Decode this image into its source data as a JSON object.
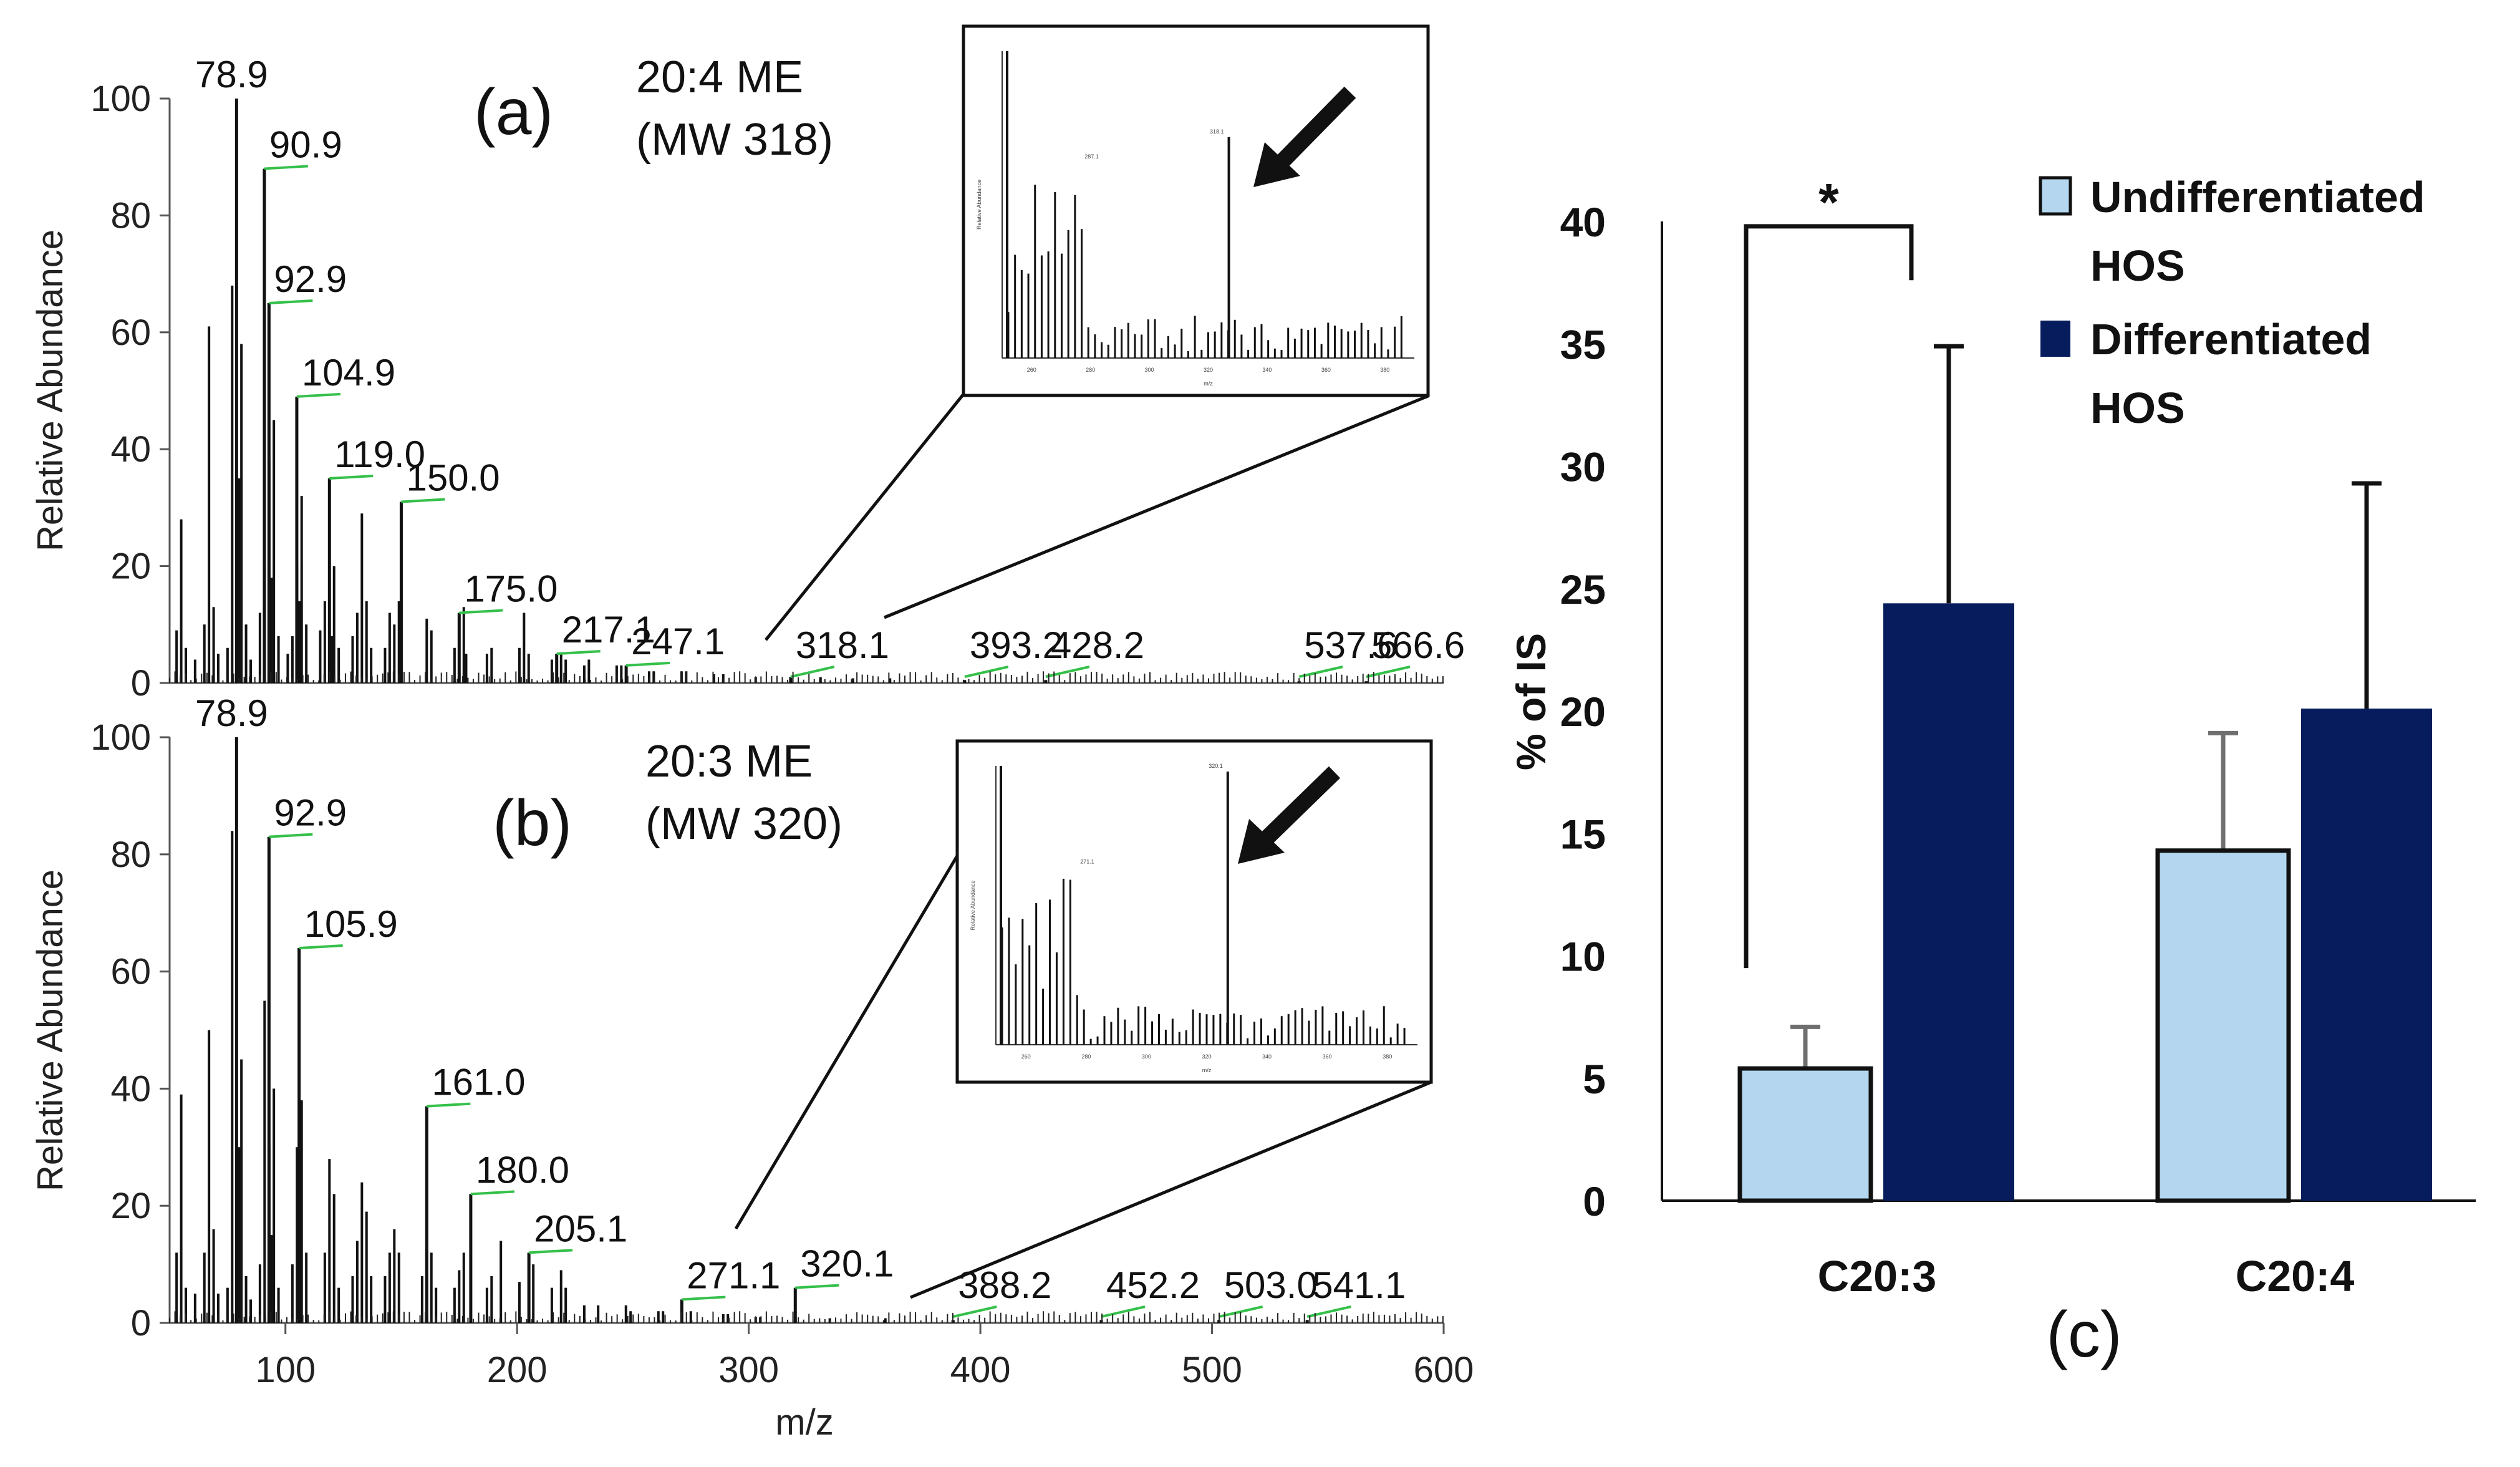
{
  "chart_data": [
    {
      "panel": "(a)",
      "type": "line",
      "subtype": "mass-spectrum",
      "title": "20:4 ME",
      "subtitle": "(MW 318)",
      "xlabel": "",
      "ylabel": "Relative Abundance",
      "xlim": [
        50,
        600
      ],
      "ylim": [
        0,
        100
      ],
      "yticks": [
        0,
        20,
        40,
        60,
        80,
        100
      ],
      "xticks": [],
      "peaks": [
        {
          "mz": 78.9,
          "rel": 100,
          "label": "78.9"
        },
        {
          "mz": 90.9,
          "rel": 88,
          "label": "90.9"
        },
        {
          "mz": 92.9,
          "rel": 65,
          "label": "92.9"
        },
        {
          "mz": 104.9,
          "rel": 49,
          "label": "104.9"
        },
        {
          "mz": 119.0,
          "rel": 35,
          "label": "119.0"
        },
        {
          "mz": 150.0,
          "rel": 31,
          "label": "150.0"
        },
        {
          "mz": 175.0,
          "rel": 12,
          "label": "175.0"
        },
        {
          "mz": 217.1,
          "rel": 5,
          "label": "217.1"
        },
        {
          "mz": 247.1,
          "rel": 3,
          "label": "247.1"
        },
        {
          "mz": 318.1,
          "rel": 1,
          "label": "318.1"
        },
        {
          "mz": 393.2,
          "rel": 0.5,
          "label": "393.2"
        },
        {
          "mz": 428.2,
          "rel": 0.5,
          "label": "428.2"
        },
        {
          "mz": 537.6,
          "rel": 0.3,
          "label": "537.6"
        },
        {
          "mz": 566.6,
          "rel": 0.3,
          "label": "566.6"
        }
      ],
      "minor_peaks": [
        [
          53,
          9
        ],
        [
          55,
          28
        ],
        [
          57,
          6
        ],
        [
          61,
          4
        ],
        [
          65,
          10
        ],
        [
          67,
          61
        ],
        [
          69,
          13
        ],
        [
          71,
          5
        ],
        [
          75,
          6
        ],
        [
          77,
          68
        ],
        [
          79,
          28
        ],
        [
          80,
          35
        ],
        [
          81,
          58
        ],
        [
          83,
          10
        ],
        [
          85,
          4
        ],
        [
          89,
          12
        ],
        [
          91,
          20
        ],
        [
          93,
          38
        ],
        [
          94,
          18
        ],
        [
          95,
          45
        ],
        [
          97,
          8
        ],
        [
          101,
          5
        ],
        [
          103,
          8
        ],
        [
          105,
          20
        ],
        [
          106,
          14
        ],
        [
          107,
          32
        ],
        [
          109,
          10
        ],
        [
          115,
          9
        ],
        [
          117,
          14
        ],
        [
          119,
          12
        ],
        [
          120,
          8
        ],
        [
          121,
          20
        ],
        [
          123,
          6
        ],
        [
          129,
          8
        ],
        [
          131,
          12
        ],
        [
          133,
          29
        ],
        [
          135,
          14
        ],
        [
          137,
          6
        ],
        [
          143,
          6
        ],
        [
          145,
          12
        ],
        [
          147,
          10
        ],
        [
          149,
          14
        ],
        [
          161,
          11
        ],
        [
          163,
          9
        ],
        [
          173,
          6
        ],
        [
          177,
          13
        ],
        [
          178,
          5
        ],
        [
          187,
          5
        ],
        [
          189,
          6
        ],
        [
          201,
          6
        ],
        [
          203,
          12
        ],
        [
          205,
          5
        ],
        [
          215,
          4
        ],
        [
          219,
          5
        ],
        [
          221,
          4
        ],
        [
          229,
          3
        ],
        [
          231,
          4
        ],
        [
          243,
          3
        ],
        [
          245,
          3
        ],
        [
          257,
          2
        ],
        [
          259,
          2
        ],
        [
          271,
          2
        ],
        [
          273,
          2
        ],
        [
          285,
          1.5
        ],
        [
          289,
          1.5
        ],
        [
          303,
          1
        ],
        [
          331,
          1
        ],
        [
          345,
          0.8
        ],
        [
          361,
          0.8
        ]
      ],
      "inset": {
        "labels": [
          "318.1",
          "287.1"
        ],
        "ticks": [
          "260",
          "280",
          "300",
          "320",
          "340",
          "360",
          "380"
        ],
        "ylabel": "Relative Abundance",
        "xlabel": "m/z"
      }
    },
    {
      "panel": "(b)",
      "type": "line",
      "subtype": "mass-spectrum",
      "title": "20:3 ME",
      "subtitle": "(MW 320)",
      "xlabel": "m/z",
      "ylabel": "Relative Abundance",
      "xlim": [
        50,
        600
      ],
      "ylim": [
        0,
        100
      ],
      "yticks": [
        0,
        20,
        40,
        60,
        80,
        100
      ],
      "xticks": [
        100,
        200,
        300,
        400,
        500,
        600
      ],
      "peaks": [
        {
          "mz": 78.9,
          "rel": 100,
          "label": "78.9"
        },
        {
          "mz": 92.9,
          "rel": 83,
          "label": "92.9"
        },
        {
          "mz": 105.9,
          "rel": 64,
          "label": "105.9"
        },
        {
          "mz": 161.0,
          "rel": 37,
          "label": "161.0"
        },
        {
          "mz": 180.0,
          "rel": 22,
          "label": "180.0"
        },
        {
          "mz": 205.1,
          "rel": 12,
          "label": "205.1"
        },
        {
          "mz": 271.1,
          "rel": 4,
          "label": "271.1"
        },
        {
          "mz": 320.1,
          "rel": 6,
          "label": "320.1"
        },
        {
          "mz": 388.2,
          "rel": 0.5,
          "label": "388.2"
        },
        {
          "mz": 452.2,
          "rel": 0.5,
          "label": "452.2"
        },
        {
          "mz": 503.0,
          "rel": 0.5,
          "label": "503.0"
        },
        {
          "mz": 541.1,
          "rel": 0.5,
          "label": "541.1"
        }
      ],
      "minor_peaks": [
        [
          53,
          12
        ],
        [
          55,
          39
        ],
        [
          57,
          6
        ],
        [
          61,
          5
        ],
        [
          65,
          12
        ],
        [
          67,
          50
        ],
        [
          69,
          16
        ],
        [
          71,
          5
        ],
        [
          75,
          6
        ],
        [
          77,
          84
        ],
        [
          79,
          24
        ],
        [
          80,
          30
        ],
        [
          81,
          45
        ],
        [
          83,
          8
        ],
        [
          85,
          4
        ],
        [
          89,
          10
        ],
        [
          91,
          55
        ],
        [
          93,
          30
        ],
        [
          94,
          15
        ],
        [
          95,
          40
        ],
        [
          97,
          6
        ],
        [
          103,
          10
        ],
        [
          105,
          30
        ],
        [
          107,
          38
        ],
        [
          109,
          12
        ],
        [
          117,
          12
        ],
        [
          119,
          28
        ],
        [
          121,
          22
        ],
        [
          123,
          6
        ],
        [
          129,
          8
        ],
        [
          131,
          14
        ],
        [
          133,
          24
        ],
        [
          135,
          19
        ],
        [
          137,
          8
        ],
        [
          143,
          8
        ],
        [
          145,
          12
        ],
        [
          147,
          16
        ],
        [
          149,
          12
        ],
        [
          159,
          8
        ],
        [
          163,
          12
        ],
        [
          165,
          6
        ],
        [
          173,
          6
        ],
        [
          175,
          9
        ],
        [
          177,
          12
        ],
        [
          187,
          6
        ],
        [
          189,
          8
        ],
        [
          193,
          14
        ],
        [
          201,
          7
        ],
        [
          207,
          10
        ],
        [
          215,
          6
        ],
        [
          219,
          9
        ],
        [
          221,
          6
        ],
        [
          229,
          3
        ],
        [
          235,
          3
        ],
        [
          247,
          3
        ],
        [
          249,
          2
        ],
        [
          261,
          2
        ],
        [
          263,
          2
        ],
        [
          275,
          2
        ],
        [
          289,
          1.5
        ],
        [
          291,
          1.5
        ],
        [
          303,
          1
        ],
        [
          305,
          1
        ],
        [
          335,
          0.8
        ],
        [
          359,
          0.8
        ]
      ],
      "inset": {
        "labels": [
          "320.1",
          "271.1"
        ],
        "ticks": [
          "260",
          "280",
          "300",
          "320",
          "340",
          "360",
          "380"
        ],
        "ylabel": "Relative Abundance",
        "xlabel": "m/z"
      }
    },
    {
      "panel": "(c)",
      "type": "bar",
      "title": "",
      "xlabel": "",
      "ylabel": "% of IS",
      "ylim": [
        0,
        40
      ],
      "yticks": [
        0,
        5,
        10,
        15,
        20,
        25,
        30,
        35,
        40
      ],
      "categories": [
        "C20:3",
        "C20:4"
      ],
      "series": [
        {
          "name": "Undifferentiated HOS",
          "legend_lines": [
            "Undifferentiated",
            "HOS"
          ],
          "color": "#b4d7ef",
          "values": [
            5.4,
            14.3
          ],
          "errors": [
            1.7,
            4.8
          ]
        },
        {
          "name": "Differentiated HOS",
          "legend_lines": [
            "Differentiated",
            "HOS"
          ],
          "color": "#071c5c",
          "values": [
            24.4,
            20.1
          ],
          "errors": [
            10.5,
            9.2
          ]
        }
      ],
      "significance": {
        "label": "*",
        "category": "C20:3"
      },
      "legend": "top-right"
    }
  ]
}
